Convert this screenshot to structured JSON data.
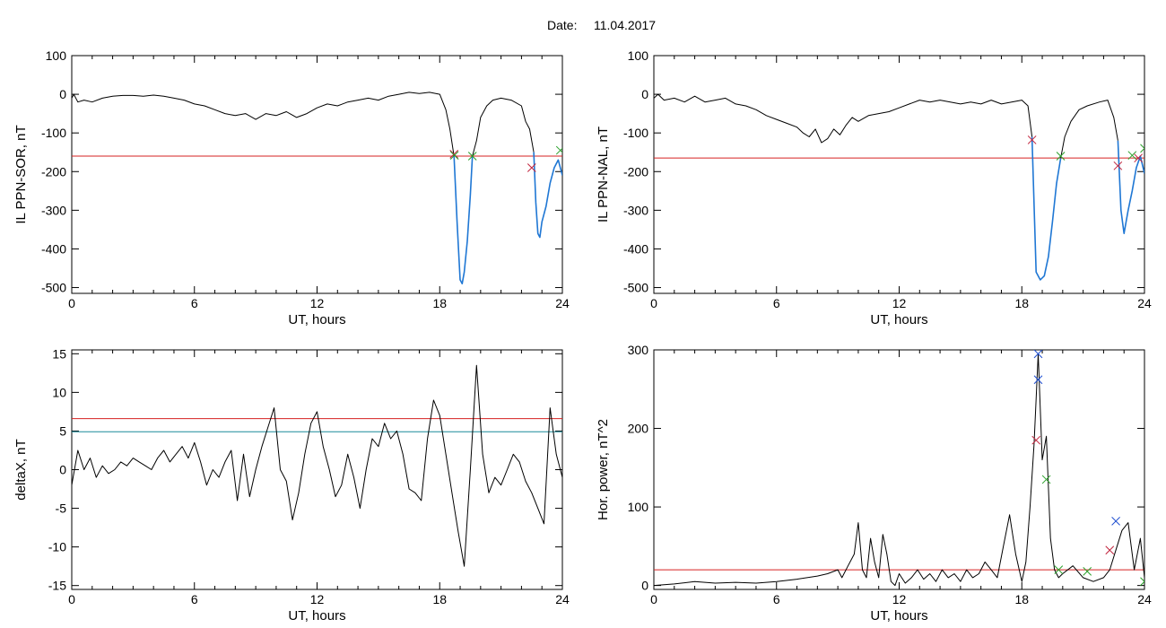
{
  "figure": {
    "date_label": "Date:",
    "date_value": "11.04.2017"
  },
  "colors": {
    "trace": "#000000",
    "threshold_red": "#d62020",
    "threshold_teal": "#1a8a9a",
    "highlight_blue": "#1f77d4",
    "marker_red": "#c0203a",
    "marker_green": "#2aa02a",
    "marker_blue": "#1f4fd0"
  },
  "chart_data": [
    {
      "id": "il-sor",
      "type": "line",
      "xlabel": "UT, hours",
      "ylabel": "IL PPN-SOR, nT",
      "xlim": [
        0,
        24
      ],
      "ylim": [
        -515,
        100
      ],
      "xticks": [
        0,
        6,
        12,
        18,
        24
      ],
      "yticks": [
        100,
        0,
        -100,
        -200,
        -300,
        -400,
        -500
      ],
      "grid": false,
      "threshold": {
        "y": -160,
        "color": "red"
      },
      "series": [
        {
          "style": "black",
          "x": [
            0,
            0.1,
            0.3,
            0.6,
            1,
            1.5,
            2,
            2.5,
            3,
            3.5,
            4,
            4.5,
            5,
            5.5,
            6,
            6.5,
            7,
            7.5,
            8,
            8.5,
            9,
            9.5,
            10,
            10.5,
            11,
            11.5,
            12,
            12.5,
            13,
            13.5,
            14,
            14.5,
            15,
            15.5,
            16,
            16.5,
            17,
            17.5,
            18,
            18.3,
            18.5,
            18.7
          ],
          "y": [
            -10,
            0,
            -20,
            -15,
            -20,
            -10,
            -5,
            -3,
            -3,
            -5,
            -2,
            -5,
            -10,
            -15,
            -25,
            -30,
            -40,
            -50,
            -55,
            -50,
            -65,
            -50,
            -55,
            -45,
            -60,
            -50,
            -35,
            -25,
            -30,
            -20,
            -15,
            -10,
            -15,
            -5,
            0,
            5,
            2,
            5,
            0,
            -40,
            -90,
            -160
          ]
        },
        {
          "style": "blue",
          "x": [
            18.7,
            18.85,
            19.0,
            19.1,
            19.2,
            19.35,
            19.5,
            19.6
          ],
          "y": [
            -160,
            -330,
            -480,
            -490,
            -460,
            -380,
            -260,
            -160
          ]
        },
        {
          "style": "black",
          "x": [
            19.6,
            19.8,
            20.0,
            20.3,
            20.6,
            21.0,
            21.5,
            22.0,
            22.2,
            22.4,
            22.6
          ],
          "y": [
            -160,
            -120,
            -60,
            -30,
            -15,
            -10,
            -15,
            -30,
            -70,
            -90,
            -150
          ]
        },
        {
          "style": "blue",
          "x": [
            22.6,
            22.7,
            22.8,
            22.9,
            23.0,
            23.2,
            23.4,
            23.6,
            23.8,
            24.0
          ],
          "y": [
            -150,
            -280,
            -360,
            -370,
            -330,
            -290,
            -230,
            -190,
            -170,
            -210
          ]
        }
      ],
      "markers": [
        {
          "x": 18.7,
          "y": -155,
          "color": "red"
        },
        {
          "x": 18.72,
          "y": -158,
          "color": "green"
        },
        {
          "x": 19.6,
          "y": -160,
          "color": "green"
        },
        {
          "x": 22.5,
          "y": -190,
          "color": "red"
        },
        {
          "x": 23.9,
          "y": -145,
          "color": "green"
        }
      ]
    },
    {
      "id": "il-nal",
      "type": "line",
      "xlabel": "UT, hours",
      "ylabel": "IL PPN-NAL, nT",
      "xlim": [
        0,
        24
      ],
      "ylim": [
        -515,
        100
      ],
      "xticks": [
        0,
        6,
        12,
        18,
        24
      ],
      "yticks": [
        100,
        0,
        -100,
        -200,
        -300,
        -400,
        -500
      ],
      "grid": false,
      "threshold": {
        "y": -165,
        "color": "red"
      },
      "series": [
        {
          "style": "black",
          "x": [
            0,
            0.2,
            0.5,
            1,
            1.5,
            2,
            2.5,
            3,
            3.5,
            4,
            4.5,
            5,
            5.5,
            6,
            6.5,
            7,
            7.3,
            7.6,
            7.9,
            8.2,
            8.5,
            8.8,
            9.1,
            9.4,
            9.7,
            10,
            10.5,
            11,
            11.5,
            12,
            12.5,
            13,
            13.5,
            14,
            14.5,
            15,
            15.5,
            16,
            16.5,
            17,
            17.5,
            18,
            18.3,
            18.5
          ],
          "y": [
            -10,
            0,
            -15,
            -10,
            -20,
            -5,
            -20,
            -15,
            -10,
            -25,
            -30,
            -40,
            -55,
            -65,
            -75,
            -85,
            -100,
            -110,
            -90,
            -125,
            -115,
            -90,
            -105,
            -80,
            -60,
            -70,
            -55,
            -50,
            -45,
            -35,
            -25,
            -15,
            -20,
            -15,
            -20,
            -25,
            -20,
            -25,
            -15,
            -25,
            -20,
            -15,
            -30,
            -110
          ]
        },
        {
          "style": "blue",
          "x": [
            18.5,
            18.7,
            18.9,
            19.1,
            19.3,
            19.5,
            19.7,
            19.9
          ],
          "y": [
            -110,
            -460,
            -480,
            -470,
            -420,
            -330,
            -230,
            -165
          ]
        },
        {
          "style": "black",
          "x": [
            19.9,
            20.1,
            20.4,
            20.8,
            21.2,
            21.8,
            22.2,
            22.5,
            22.7
          ],
          "y": [
            -165,
            -110,
            -70,
            -40,
            -30,
            -20,
            -15,
            -60,
            -120
          ]
        },
        {
          "style": "blue",
          "x": [
            22.7,
            22.85,
            23.0,
            23.2,
            23.4,
            23.6,
            23.8,
            24.0
          ],
          "y": [
            -120,
            -300,
            -360,
            -300,
            -250,
            -190,
            -160,
            -205
          ]
        }
      ],
      "markers": [
        {
          "x": 18.5,
          "y": -118,
          "color": "red"
        },
        {
          "x": 19.9,
          "y": -160,
          "color": "green"
        },
        {
          "x": 22.7,
          "y": -185,
          "color": "red"
        },
        {
          "x": 23.4,
          "y": -158,
          "color": "green"
        },
        {
          "x": 23.7,
          "y": -165,
          "color": "red"
        },
        {
          "x": 24.0,
          "y": -140,
          "color": "green"
        }
      ]
    },
    {
      "id": "deltax",
      "type": "line",
      "xlabel": "UT, hours",
      "ylabel": "deltaX, nT",
      "xlim": [
        0,
        24
      ],
      "ylim": [
        -15.5,
        15.5
      ],
      "xticks": [
        0,
        6,
        12,
        18,
        24
      ],
      "yticks": [
        15,
        10,
        5,
        0,
        -5,
        -10,
        -15
      ],
      "grid": false,
      "thresholds": [
        {
          "y": 6.6,
          "color": "red"
        },
        {
          "y": 4.9,
          "color": "teal"
        }
      ],
      "series": [
        {
          "style": "black",
          "x": [
            0,
            0.3,
            0.6,
            0.9,
            1.2,
            1.5,
            1.8,
            2.1,
            2.4,
            2.7,
            3,
            3.3,
            3.6,
            3.9,
            4.2,
            4.5,
            4.8,
            5.1,
            5.4,
            5.7,
            6,
            6.3,
            6.6,
            6.9,
            7.2,
            7.5,
            7.8,
            8.1,
            8.4,
            8.7,
            9.0,
            9.3,
            9.6,
            9.9,
            10.2,
            10.5,
            10.8,
            11.1,
            11.4,
            11.7,
            12.0,
            12.3,
            12.6,
            12.9,
            13.2,
            13.5,
            13.8,
            14.1,
            14.4,
            14.7,
            15.0,
            15.3,
            15.6,
            15.9,
            16.2,
            16.5,
            16.8,
            17.1,
            17.4,
            17.7,
            18.0,
            18.3,
            18.6,
            18.9,
            19.2,
            19.5,
            19.8,
            20.1,
            20.4,
            20.7,
            21.0,
            21.3,
            21.6,
            21.9,
            22.2,
            22.5,
            22.8,
            23.1,
            23.4,
            23.7,
            24.0
          ],
          "y": [
            -2,
            2.5,
            0,
            1.5,
            -1,
            0.5,
            -0.5,
            0,
            1,
            0.5,
            1.5,
            1,
            0.5,
            0,
            1.5,
            2.5,
            1,
            2,
            3,
            1.5,
            3.5,
            1,
            -2,
            0,
            -1,
            1,
            2.5,
            -4,
            2,
            -3.5,
            0,
            3,
            5.5,
            8,
            0,
            -1.5,
            -6.5,
            -3,
            2,
            6,
            7.5,
            3,
            0,
            -3.5,
            -2,
            2,
            -1,
            -5,
            0,
            4,
            3,
            6,
            4,
            5,
            2,
            -2.5,
            -3,
            -4,
            4,
            9,
            7,
            2,
            -3,
            -8,
            -12.5,
            0,
            13.5,
            2,
            -3,
            -1,
            -2,
            0,
            2,
            1,
            -1.5,
            -3,
            -5,
            -7,
            8,
            2,
            -1
          ]
        }
      ]
    },
    {
      "id": "hor-power",
      "type": "line",
      "xlabel": "UT, hours",
      "ylabel": "Hor. power, nT^2",
      "xlim": [
        0,
        24
      ],
      "ylim": [
        -5,
        300
      ],
      "xticks": [
        0,
        6,
        12,
        18,
        24
      ],
      "yticks": [
        300,
        200,
        100,
        0
      ],
      "grid": false,
      "threshold": {
        "y": 20,
        "color": "red"
      },
      "series": [
        {
          "style": "black",
          "x": [
            0,
            1,
            2,
            3,
            4,
            5,
            6,
            7,
            8,
            8.5,
            9,
            9.2,
            9.5,
            9.8,
            10.0,
            10.2,
            10.4,
            10.6,
            10.8,
            11.0,
            11.2,
            11.4,
            11.6,
            11.8,
            12.0,
            12.3,
            12.6,
            12.9,
            13.2,
            13.5,
            13.8,
            14.1,
            14.4,
            14.7,
            15.0,
            15.3,
            15.6,
            15.9,
            16.2,
            16.5,
            16.8,
            17.1,
            17.4,
            17.7,
            18.0,
            18.2,
            18.4,
            18.6,
            18.8,
            19.0,
            19.2,
            19.4,
            19.6,
            19.8,
            20.0,
            20.5,
            21.0,
            21.5,
            22.0,
            22.3,
            22.6,
            22.9,
            23.2,
            23.5,
            23.8,
            24.0
          ],
          "y": [
            0,
            2,
            5,
            3,
            4,
            3,
            5,
            8,
            12,
            15,
            20,
            10,
            25,
            40,
            80,
            20,
            10,
            60,
            30,
            10,
            65,
            40,
            5,
            0,
            15,
            3,
            10,
            20,
            8,
            15,
            5,
            20,
            10,
            15,
            5,
            20,
            10,
            15,
            30,
            20,
            10,
            50,
            90,
            40,
            5,
            30,
            100,
            180,
            295,
            160,
            190,
            60,
            20,
            10,
            15,
            25,
            10,
            5,
            10,
            20,
            45,
            70,
            80,
            20,
            60,
            10
          ]
        }
      ],
      "markers": [
        {
          "x": 18.8,
          "y": 295,
          "color": "blue"
        },
        {
          "x": 18.8,
          "y": 262,
          "color": "blue"
        },
        {
          "x": 18.7,
          "y": 185,
          "color": "red"
        },
        {
          "x": 19.2,
          "y": 135,
          "color": "green"
        },
        {
          "x": 19.8,
          "y": 20,
          "color": "green"
        },
        {
          "x": 21.2,
          "y": 18,
          "color": "green"
        },
        {
          "x": 22.3,
          "y": 45,
          "color": "red"
        },
        {
          "x": 22.6,
          "y": 82,
          "color": "blue"
        },
        {
          "x": 24.0,
          "y": 5,
          "color": "green"
        }
      ]
    }
  ]
}
